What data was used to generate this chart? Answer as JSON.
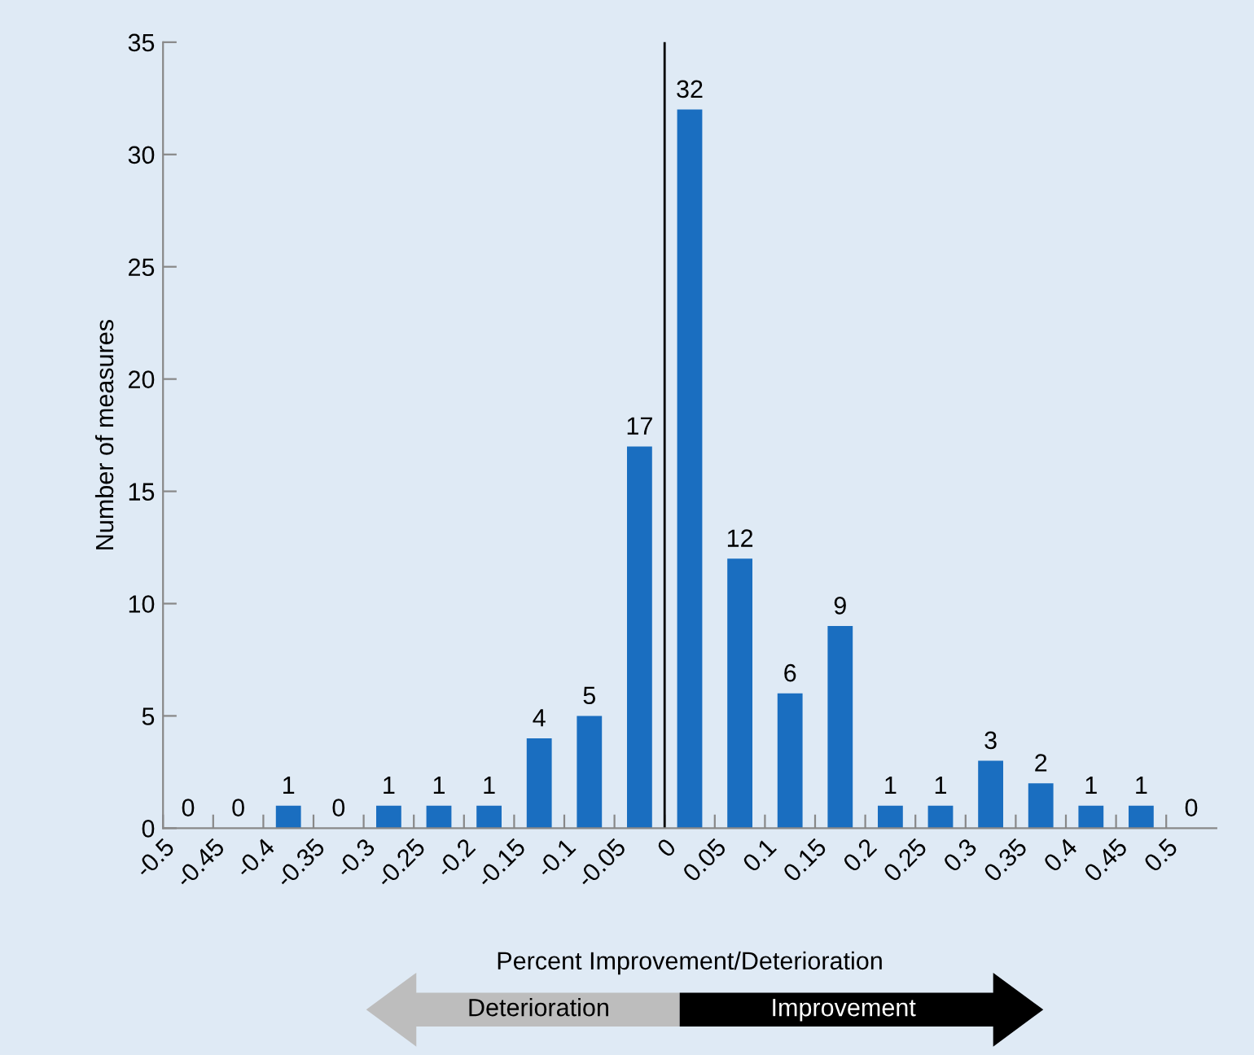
{
  "chart_data": {
    "type": "histogram",
    "xlabel": "Percent Improvement/Deterioration",
    "ylabel": "Number of measures",
    "bins": [
      -0.5,
      -0.45,
      -0.4,
      -0.35,
      -0.3,
      -0.25,
      -0.2,
      -0.15,
      -0.1,
      -0.05,
      0,
      0.05,
      0.1,
      0.15,
      0.2,
      0.25,
      0.3,
      0.35,
      0.4,
      0.45,
      0.5,
      0.55
    ],
    "values": [
      0,
      0,
      1,
      0,
      1,
      1,
      1,
      4,
      5,
      17,
      32,
      12,
      6,
      9,
      1,
      1,
      3,
      2,
      1,
      1,
      0
    ],
    "color": "#1a6ec0",
    "data_labels": true,
    "xlim": [
      -0.5,
      0.55
    ],
    "xticks": [
      -0.5,
      -0.45,
      -0.4,
      -0.35,
      -0.3,
      -0.25,
      -0.2,
      -0.15,
      -0.1,
      -0.05,
      0,
      0.05,
      0.1,
      0.15,
      0.2,
      0.25,
      0.3,
      0.35,
      0.4,
      0.45,
      0.5
    ],
    "ylim": [
      0,
      35
    ],
    "yticks": [
      0,
      5,
      10,
      15,
      20,
      25,
      30,
      35
    ],
    "ref_lines": [
      {
        "axis": "x",
        "value": 0,
        "color": "#000000"
      }
    ],
    "annotations": [
      "Deterioration",
      "Improvement"
    ],
    "grid": false,
    "legend": false
  }
}
